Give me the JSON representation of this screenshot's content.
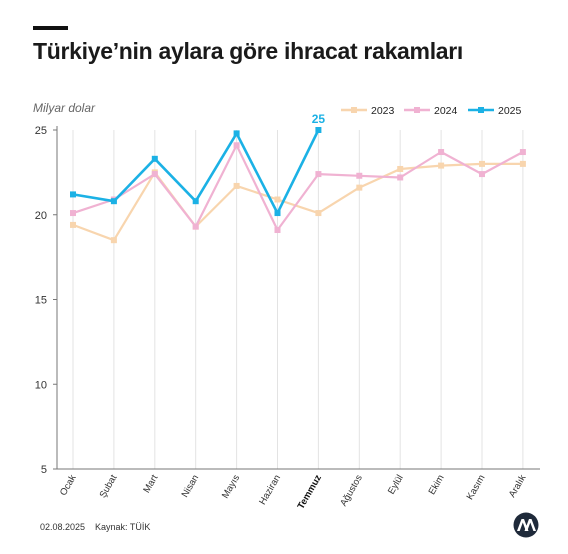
{
  "title": "Türkiye’nin aylara göre ihracat rakamları",
  "footer": {
    "date": "02.08.2025",
    "source": "Kaynak: TÜİK"
  },
  "colors": {
    "y2023": "#f8d5ae",
    "y2024": "#f0b2d2",
    "y2025": "#1bb1e5",
    "grid": "#e3e3e3",
    "axis": "#777777"
  },
  "chart_data": {
    "type": "line",
    "ylabel": "Milyar dolar",
    "ylim": [
      5,
      25
    ],
    "yticks": [
      5,
      10,
      15,
      20,
      25
    ],
    "grid": "vertical",
    "legend_position": "top-right",
    "categories": [
      "Ocak",
      "Şubat",
      "Mart",
      "Nisan",
      "Mayıs",
      "Haziran",
      "Temmuz",
      "Ağustos",
      "Eylül",
      "Ekim",
      "Kasım",
      "Aralık"
    ],
    "highlight_category": "Temmuz",
    "series": [
      {
        "name": "2023",
        "color": "#f8d5ae",
        "values": [
          19.4,
          18.5,
          22.5,
          19.3,
          21.7,
          20.9,
          20.1,
          21.6,
          22.7,
          22.9,
          23.0,
          23.0
        ]
      },
      {
        "name": "2024",
        "color": "#f0b2d2",
        "values": [
          20.1,
          20.9,
          22.4,
          19.3,
          24.1,
          19.1,
          22.4,
          22.3,
          22.2,
          23.7,
          22.4,
          23.7
        ]
      },
      {
        "name": "2025",
        "color": "#1bb1e5",
        "values": [
          21.2,
          20.8,
          23.3,
          20.8,
          24.8,
          20.1,
          25.0,
          null,
          null,
          null,
          null,
          null
        ]
      }
    ],
    "annotations": [
      {
        "series": "2025",
        "category": "Temmuz",
        "text": "25"
      }
    ]
  }
}
